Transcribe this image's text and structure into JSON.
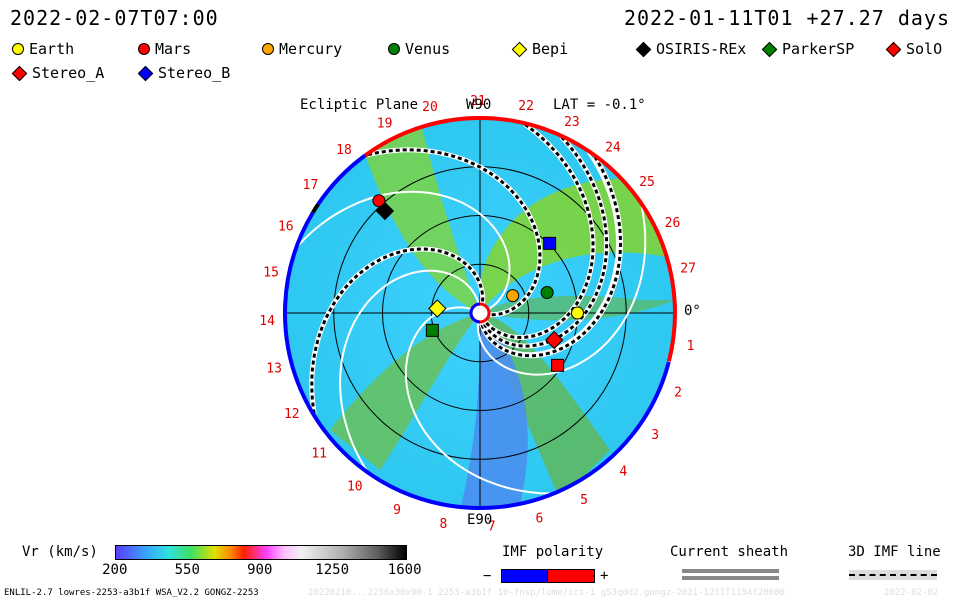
{
  "header": {
    "left_time": "2022-02-07T07:00",
    "right_time": "2022-01-11T01 +27.27 days"
  },
  "legend": [
    {
      "name": "Earth",
      "shape": "circle",
      "color": "#ffff00"
    },
    {
      "name": "Mars",
      "shape": "circle",
      "color": "#ff0000"
    },
    {
      "name": "Mercury",
      "shape": "circle",
      "color": "#ffa500"
    },
    {
      "name": "Venus",
      "shape": "circle",
      "color": "#008000"
    },
    {
      "name": "Bepi",
      "shape": "diamond",
      "color": "#ffff00"
    },
    {
      "name": "OSIRIS-REx",
      "shape": "diamond",
      "color": "#000000"
    },
    {
      "name": "ParkerSP",
      "shape": "diamond",
      "color": "#008000"
    },
    {
      "name": "SolO",
      "shape": "diamond",
      "color": "#ff0000"
    },
    {
      "name": "Stereo_A",
      "shape": "diamond",
      "color": "#ff0000"
    },
    {
      "name": "Stereo_B",
      "shape": "diamond",
      "color": "#0000ff"
    }
  ],
  "plot": {
    "title": "Ecliptic Plane",
    "w_label": "W90",
    "e_label": "E90",
    "lat_label": "LAT = -0.1°",
    "zero_label": "0°",
    "carrington_labels": [
      "1",
      "2",
      "3",
      "4",
      "5",
      "6",
      "7",
      "8",
      "9",
      "10",
      "11",
      "12",
      "13",
      "14",
      "15",
      "16",
      "17",
      "18",
      "19",
      "20",
      "21",
      "22",
      "23",
      "24",
      "25",
      "26",
      "27"
    ]
  },
  "colorbar": {
    "label": "Vr (km/s)",
    "ticks": [
      "200",
      "550",
      "900",
      "1250",
      "1600"
    ]
  },
  "imf_polarity": {
    "label": "IMF polarity",
    "minus": "−",
    "plus": "+"
  },
  "current_sheath": {
    "label": "Current sheath"
  },
  "imf_line": {
    "label": "3D IMF line"
  },
  "footer": {
    "left": "ENLIL-2.7 lowres-2253-a3b1f WSA_V2.2 GONGZ-2253",
    "middle": "20220210...2256x30x90-1 2253-a3b1f 10-fnsp/lume/ics-1 g53qdd2.gongz-2021-1211T1154f20000",
    "right": "2022-02-02"
  },
  "chart_data": {
    "type": "polar-heliosphere",
    "title": "Ecliptic Plane",
    "colorbar_range_kms": [
      200,
      1600
    ],
    "latitude_deg": -0.1,
    "bodies": [
      {
        "name": "Earth",
        "lon_deg": 0,
        "r_au": 1.0
      },
      {
        "name": "Mars",
        "lon_deg": 132,
        "r_au": 1.55
      },
      {
        "name": "Mercury",
        "lon_deg": 28,
        "r_au": 0.38
      },
      {
        "name": "Venus",
        "lon_deg": 17,
        "r_au": 0.72
      },
      {
        "name": "Bepi",
        "lon_deg": 174,
        "r_au": 0.44
      },
      {
        "name": "OSIRIS-REx",
        "lon_deg": 133,
        "r_au": 1.43
      },
      {
        "name": "ParkerSP",
        "lon_deg": 200,
        "r_au": 0.52
      },
      {
        "name": "SolO",
        "lon_deg": -20,
        "r_au": 0.81
      },
      {
        "name": "Stereo_A",
        "lon_deg": -34,
        "r_au": 0.96
      },
      {
        "name": "Stereo_B",
        "lon_deg": 45,
        "r_au": 1.01
      }
    ]
  }
}
